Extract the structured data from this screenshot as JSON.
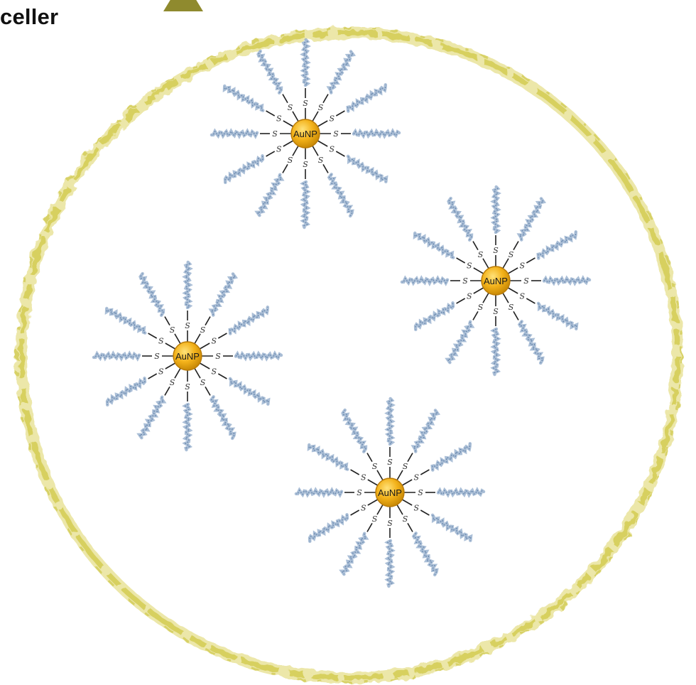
{
  "header": {
    "partial_title": "celler"
  },
  "colors": {
    "membrane": "#d6cf5a",
    "membrane_light": "#e9e39a",
    "triangle": "#8f8a2e",
    "gold_core": "#f3b21a",
    "gold_edge": "#b97a06",
    "dna_strand": "#8fa9c9",
    "dna_strand_dark": "#5f7fa6",
    "linker": "#222222"
  },
  "diagram": {
    "nanoparticles": [
      {
        "core_label": "AuNP",
        "thiol_label": "S"
      },
      {
        "core_label": "AuNP",
        "thiol_label": "S"
      },
      {
        "core_label": "AuNP",
        "thiol_label": "S"
      },
      {
        "core_label": "AuNP",
        "thiol_label": "S"
      }
    ]
  }
}
